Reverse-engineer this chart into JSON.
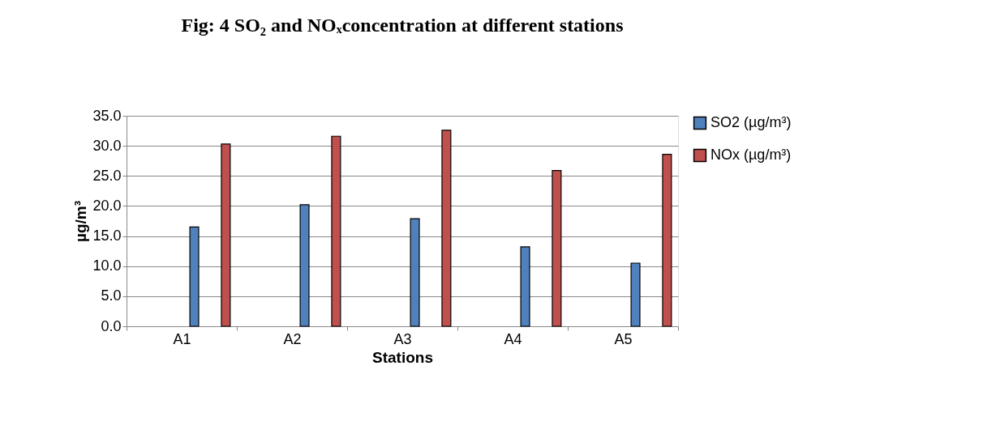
{
  "chart_data": {
    "type": "bar",
    "title": "Fig: 4  SO₂ and NOₓconcentration at different stations",
    "xlabel": "Stations",
    "ylabel": "µg/m³",
    "categories": [
      "A1",
      "A2",
      "A3",
      "A4",
      "A5"
    ],
    "series": [
      {
        "name": "SO2 (µg/m³)",
        "color": "#4f81bd",
        "values": [
          16.5,
          20.2,
          17.9,
          13.2,
          10.5
        ]
      },
      {
        "name": "NOx (µg/m³)",
        "color": "#c0504d",
        "values": [
          30.3,
          31.6,
          32.6,
          25.9,
          28.6
        ]
      }
    ],
    "ylim": [
      0,
      35
    ],
    "yticks": [
      {
        "value": 0,
        "label": "0.0"
      },
      {
        "value": 5,
        "label": "5.0"
      },
      {
        "value": 10,
        "label": "10.0"
      },
      {
        "value": 15,
        "label": "15.0"
      },
      {
        "value": 20,
        "label": "20.0"
      },
      {
        "value": 25,
        "label": "25.0"
      },
      {
        "value": 30,
        "label": "30.0"
      },
      {
        "value": 35,
        "label": "35.0"
      }
    ],
    "grid": "y",
    "legend": "right"
  }
}
